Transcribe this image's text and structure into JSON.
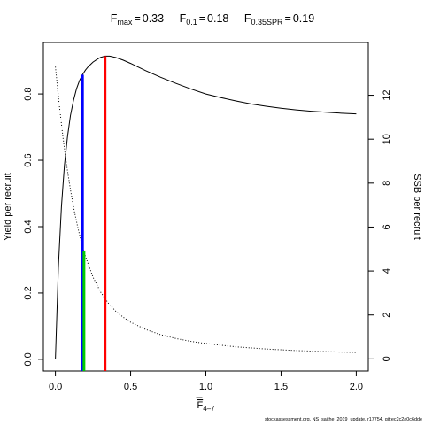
{
  "title": {
    "fmax": {
      "sym": "F",
      "sub": "max",
      "value": "0.33"
    },
    "f01": {
      "sym": "F",
      "sub": "0.1",
      "value": "0.18"
    },
    "f035spr": {
      "sym": "F",
      "sub": "0.35SPR",
      "value": "0.19"
    }
  },
  "footer": "stockassessment.org, NS_saithe_2019_update, r17754, git:ec2c2a0c6dde",
  "chart_data": {
    "type": "line",
    "xlabel": {
      "main": "F",
      "sub": "4–7"
    },
    "ylabel": "Yield per recruit",
    "y2label": "SSB per recruit",
    "xlim": [
      -0.08,
      2.08
    ],
    "ylim": [
      -0.035,
      0.955
    ],
    "y2lim": [
      -0.55,
      14.4
    ],
    "xticks": [
      "0.0",
      "0.5",
      "1.0",
      "1.5",
      "2.0"
    ],
    "yticks": [
      "0.0",
      "0.2",
      "0.4",
      "0.6",
      "0.8"
    ],
    "y2ticks": [
      "0",
      "2",
      "4",
      "6",
      "8",
      "10",
      "12"
    ],
    "series": [
      {
        "axis": "left",
        "style": "solid",
        "color": "#000000",
        "points": [
          [
            0.0,
            0.0
          ],
          [
            0.02,
            0.28
          ],
          [
            0.04,
            0.46
          ],
          [
            0.06,
            0.585
          ],
          [
            0.08,
            0.67
          ],
          [
            0.1,
            0.735
          ],
          [
            0.12,
            0.78
          ],
          [
            0.14,
            0.815
          ],
          [
            0.16,
            0.84
          ],
          [
            0.18,
            0.858
          ],
          [
            0.2,
            0.872
          ],
          [
            0.22,
            0.883
          ],
          [
            0.25,
            0.896
          ],
          [
            0.28,
            0.905
          ],
          [
            0.3,
            0.91
          ],
          [
            0.33,
            0.914
          ],
          [
            0.36,
            0.914
          ],
          [
            0.4,
            0.91
          ],
          [
            0.45,
            0.902
          ],
          [
            0.5,
            0.892
          ],
          [
            0.6,
            0.87
          ],
          [
            0.7,
            0.85
          ],
          [
            0.8,
            0.832
          ],
          [
            0.9,
            0.815
          ],
          [
            1.0,
            0.8
          ],
          [
            1.1,
            0.789
          ],
          [
            1.2,
            0.779
          ],
          [
            1.3,
            0.77
          ],
          [
            1.4,
            0.763
          ],
          [
            1.5,
            0.757
          ],
          [
            1.6,
            0.752
          ],
          [
            1.7,
            0.748
          ],
          [
            1.8,
            0.745
          ],
          [
            1.9,
            0.742
          ],
          [
            2.0,
            0.74
          ]
        ]
      },
      {
        "axis": "right",
        "style": "dotted",
        "color": "#000000",
        "points": [
          [
            0.0,
            13.3
          ],
          [
            0.025,
            11.6
          ],
          [
            0.05,
            10.1
          ],
          [
            0.075,
            8.8
          ],
          [
            0.1,
            7.7
          ],
          [
            0.125,
            6.75
          ],
          [
            0.15,
            5.95
          ],
          [
            0.175,
            5.25
          ],
          [
            0.2,
            4.66
          ],
          [
            0.25,
            3.72
          ],
          [
            0.3,
            3.05
          ],
          [
            0.35,
            2.55
          ],
          [
            0.4,
            2.18
          ],
          [
            0.45,
            1.9
          ],
          [
            0.5,
            1.67
          ],
          [
            0.6,
            1.34
          ],
          [
            0.7,
            1.1
          ],
          [
            0.8,
            0.93
          ],
          [
            0.9,
            0.8
          ],
          [
            1.0,
            0.7
          ],
          [
            1.2,
            0.55
          ],
          [
            1.4,
            0.45
          ],
          [
            1.6,
            0.38
          ],
          [
            1.8,
            0.33
          ],
          [
            2.0,
            0.29
          ]
        ]
      }
    ],
    "reference_lines": [
      {
        "name": "F0.1",
        "x": 0.18,
        "color": "#0000ff"
      },
      {
        "name": "F0.35SPR",
        "x": 0.19,
        "color": "#00cc00"
      },
      {
        "name": "Fmax",
        "x": 0.33,
        "color": "#ff0000"
      }
    ],
    "grid": false,
    "legend": "none"
  }
}
